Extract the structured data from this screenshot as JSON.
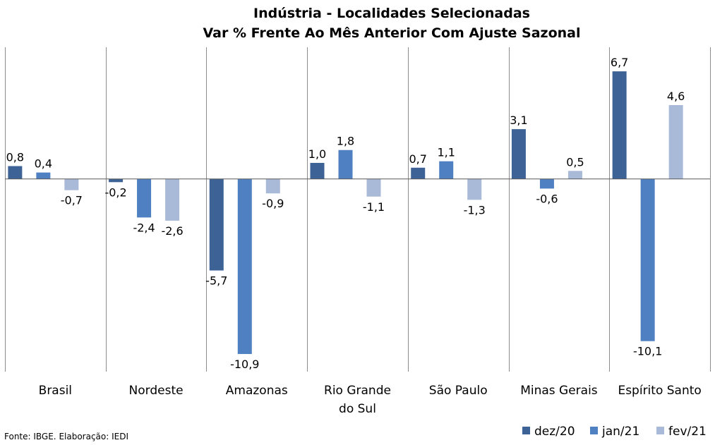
{
  "chart_data": {
    "type": "bar",
    "title": "Indústria - Localidades Selecionadas",
    "subtitle": "Var % Frente Ao Mês Anterior Com Ajuste Sazonal",
    "categories": [
      [
        "Brasil"
      ],
      [
        "Nordeste"
      ],
      [
        "Amazonas"
      ],
      [
        "Rio Grande",
        "do Sul"
      ],
      [
        "São Paulo"
      ],
      [
        "Minas Gerais"
      ],
      [
        "Espírito Santo"
      ]
    ],
    "series": [
      {
        "name": "dez/20",
        "color": "#3d6296",
        "values": [
          0.8,
          -0.2,
          -5.7,
          1.0,
          0.7,
          3.1,
          6.7
        ],
        "labels": [
          "0,8",
          "-0,2",
          "-5,7",
          "1,0",
          "0,7",
          "3,1",
          "6,7"
        ]
      },
      {
        "name": "jan/21",
        "color": "#4f80c2",
        "values": [
          0.4,
          -2.4,
          -10.9,
          1.8,
          1.1,
          -0.6,
          -10.1
        ],
        "labels": [
          "0,4",
          "-2,4",
          "-10,9",
          "1,8",
          "1,1",
          "-0,6",
          "-10,1"
        ]
      },
      {
        "name": "fev/21",
        "color": "#a9b9d8",
        "values": [
          -0.7,
          -2.6,
          -0.9,
          -1.1,
          -1.3,
          0.5,
          4.6
        ],
        "labels": [
          "-0,7",
          "-2,6",
          "-0,9",
          "-1,1",
          "-1,3",
          "0,5",
          "4,6"
        ]
      }
    ],
    "ylim": [
      -12,
      8.2
    ],
    "grid": false,
    "category_separators": true,
    "legend": "bottom-right"
  },
  "footer": {
    "source": "Fonte: IBGE. Elaboração: IEDI"
  }
}
